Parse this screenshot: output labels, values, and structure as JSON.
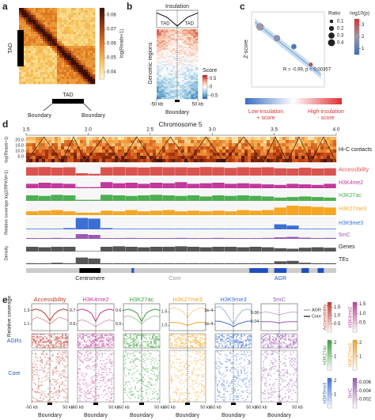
{
  "panel_labels": [
    "a",
    "b",
    "c",
    "d",
    "e"
  ],
  "chart_data": [
    {
      "type": "heatmap",
      "colorbar_title": "log(Reads+1)",
      "clim": [
        0.035,
        0.085
      ],
      "colorbar_ticks": [
        0.04,
        0.05,
        0.06,
        0.07,
        0.08
      ],
      "annotations": [
        "TAD",
        "TAD",
        "Boundary",
        "Boundary"
      ]
    },
    {
      "type": "heatmap",
      "title": "Insulation",
      "ylabel": "Genomic regions",
      "xlabel": "Boundary",
      "xlim": [
        -50,
        50
      ],
      "xticks": [
        {
          "value": -50,
          "label": "-50 kb"
        },
        {
          "value": 50,
          "label": "50 kb"
        }
      ],
      "profile_x": [
        -50,
        -25,
        0,
        25,
        50
      ],
      "profile": [
        0.85,
        0.6,
        0.1,
        0.6,
        0.85
      ],
      "profile_ylim": [
        0,
        1
      ],
      "colorbar_title": "Score",
      "clim": [
        -0.7,
        0.7
      ],
      "colorbar_ticks": [
        -0.5,
        0,
        0.5
      ],
      "annotations": [
        "TAD",
        "TAD"
      ]
    },
    {
      "type": "scatter",
      "ylabel": "Z-score",
      "x": [
        1,
        2,
        3,
        4
      ],
      "values": [
        1.2,
        0.6,
        0.15,
        -0.8
      ],
      "sizes": [
        0.4,
        0.3,
        0.2,
        0.1
      ],
      "pvals": [
        2.0,
        1.8,
        0.8,
        3.2
      ],
      "xlim": [
        0.5,
        4.8
      ],
      "ylim": [
        -2,
        2
      ],
      "annotation": "R = -0.99, p = 0.00357",
      "size_title": "Ratio",
      "size_ticks": [
        0.1,
        0.2,
        0.3,
        0.4
      ],
      "color_title": "-log10(p)",
      "clim": [
        0.5,
        3.5
      ],
      "color_ticks": [
        1,
        2,
        3
      ],
      "left_label": [
        "Low insulation",
        "+ score"
      ],
      "right_label": [
        "High insulation",
        "- score"
      ]
    },
    {
      "type": "tracks",
      "title": "Chromosome 5",
      "xlim": [
        1.5,
        4.0
      ],
      "xticks": [
        1.5,
        {
          "value": 2,
          "label": "2.0"
        },
        2.5,
        {
          "value": 3,
          "label": "3.0"
        },
        3.5,
        {
          "value": 4,
          "label": "4.0"
        }
      ],
      "hic": {
        "name": "Hi-C contacts",
        "ylabel": "log(Reads+1)",
        "ylim": [
          0,
          23
        ],
        "yticks": [
          {
            "value": 5,
            "label": "5.0"
          },
          {
            "value": 10,
            "label": "10.0"
          },
          {
            "value": 15,
            "label": "15.0"
          },
          {
            "value": 20,
            "label": "20.0"
          }
        ]
      },
      "coverage_label": "Relative coverage log2(RPKM+1)",
      "density_label": "Density",
      "ylim": [
        0,
        1
      ],
      "bins": [
        1.5,
        1.6,
        1.7,
        1.8,
        1.9,
        2.0,
        2.1,
        2.2,
        2.3,
        2.4,
        2.5,
        2.6,
        2.7,
        2.8,
        2.9,
        3.0,
        3.1,
        3.2,
        3.3,
        3.4,
        3.5,
        3.6,
        3.7,
        3.8,
        3.9,
        4.0
      ],
      "tracks": [
        {
          "name": "Accessibility",
          "color": "#d9534f",
          "values": [
            0.7,
            0.72,
            0.68,
            0.7,
            0.2,
            0.15,
            0.7,
            0.72,
            0.7,
            0.68,
            0.72,
            0.7,
            0.7,
            0.68,
            0.72,
            0.7,
            0.65,
            0.7,
            0.68,
            0.7,
            0.62,
            0.6,
            0.66,
            0.6,
            0.62
          ]
        },
        {
          "name": "H3K4me2",
          "color": "#c0399b",
          "values": [
            0.4,
            0.5,
            0.45,
            0.4,
            0.1,
            0.1,
            0.55,
            0.45,
            0.5,
            0.4,
            0.5,
            0.45,
            0.55,
            0.4,
            0.45,
            0.5,
            0.4,
            0.45,
            0.4,
            0.35,
            0.3,
            0.4,
            0.35,
            0.3,
            0.4
          ]
        },
        {
          "name": "H3K27ac",
          "color": "#4caf50",
          "values": [
            0.5,
            0.45,
            0.55,
            0.5,
            0.1,
            0.1,
            0.55,
            0.5,
            0.45,
            0.5,
            0.55,
            0.5,
            0.45,
            0.5,
            0.4,
            0.5,
            0.45,
            0.5,
            0.45,
            0.4,
            0.3,
            0.35,
            0.4,
            0.35,
            0.3
          ]
        },
        {
          "name": "H3K27me3",
          "color": "#f5a623",
          "values": [
            0.3,
            0.35,
            0.4,
            0.3,
            0.2,
            0.2,
            0.35,
            0.3,
            0.4,
            0.3,
            0.35,
            0.4,
            0.3,
            0.35,
            0.3,
            0.35,
            0.3,
            0.4,
            0.35,
            0.4,
            0.6,
            0.75,
            0.7,
            0.65,
            0.6
          ]
        },
        {
          "name": "H3K9me3",
          "color": "#3b6fd4",
          "values": [
            0.05,
            0.05,
            0.05,
            0.1,
            0.9,
            0.85,
            0.1,
            0.05,
            0.05,
            0.05,
            0.05,
            0.05,
            0.05,
            0.05,
            0.05,
            0.05,
            0.05,
            0.05,
            0.05,
            0.05,
            0.4,
            0.3,
            0.05,
            0.05,
            0.05
          ]
        },
        {
          "name": "5mC",
          "color": "#9b59b6",
          "values": [
            0.1,
            0.1,
            0.12,
            0.1,
            0.6,
            0.5,
            0.1,
            0.1,
            0.12,
            0.1,
            0.1,
            0.1,
            0.12,
            0.1,
            0.1,
            0.12,
            0.1,
            0.1,
            0.1,
            0.12,
            0.2,
            0.25,
            0.15,
            0.1,
            0.12
          ]
        },
        {
          "name": "Genes",
          "color": "#555555",
          "values": [
            0.5,
            0.45,
            0.5,
            0.5,
            0.05,
            0.05,
            0.5,
            0.55,
            0.5,
            0.45,
            0.5,
            0.5,
            0.55,
            0.5,
            0.45,
            0.5,
            0.5,
            0.45,
            0.5,
            0.45,
            0.35,
            0.3,
            0.4,
            0.45,
            0.4
          ]
        },
        {
          "name": "TEs",
          "color": "#555555",
          "values": [
            0.1,
            0.1,
            0.15,
            0.1,
            0.7,
            0.6,
            0.1,
            0.1,
            0.1,
            0.1,
            0.1,
            0.1,
            0.1,
            0.1,
            0.1,
            0.1,
            0.1,
            0.1,
            0.1,
            0.1,
            0.3,
            0.35,
            0.15,
            0.1,
            0.1
          ]
        }
      ],
      "core": {
        "name": "Core",
        "start": 1.5,
        "end": 4.0,
        "color": "#cccccc"
      },
      "centromere": {
        "name": "Centromere",
        "start": 1.93,
        "end": 2.1,
        "color": "#000000"
      },
      "agr": {
        "name": "AGR",
        "color": "#1f4fbf",
        "segments": [
          [
            2.35,
            2.37
          ],
          [
            3.3,
            3.45
          ],
          [
            3.5,
            3.6
          ],
          [
            3.72,
            3.78
          ],
          [
            3.85,
            3.9
          ]
        ]
      }
    },
    {
      "type": "profiles",
      "ylabel": "Relative coverage",
      "row_labels": [
        "AGRs",
        "Core"
      ],
      "xlabel": "Boundary",
      "xlim": [
        -50,
        50
      ],
      "xticks": [
        {
          "value": -50,
          "label": "-50 kb"
        },
        {
          "value": 50,
          "label": "50 kb"
        }
      ],
      "x": [
        -50,
        -37.5,
        -25,
        -12.5,
        0,
        12.5,
        25,
        37.5,
        50
      ],
      "legend": [
        {
          "name": "AGR",
          "color": "#999999"
        },
        {
          "name": "Core",
          "color": "#111111"
        }
      ],
      "panels": [
        {
          "title": "Accessibility",
          "color": "#c0392b",
          "ylim": [
            1.0,
            1.4
          ],
          "yticks": [
            1.1,
            1.3
          ],
          "agr": [
            1.15,
            1.2,
            1.18,
            1.15,
            1.1,
            1.15,
            1.2,
            1.18,
            1.15
          ],
          "core": [
            1.3,
            1.32,
            1.3,
            1.25,
            1.15,
            1.25,
            1.3,
            1.32,
            1.3
          ],
          "clim": [
            0,
            1.8
          ],
          "colorbar_ticks": [
            0.5,
            {
              "value": 1,
              "label": "1.0"
            },
            1.5
          ]
        },
        {
          "title": "H3K4me2",
          "color": "#c0399b",
          "ylim": [
            0.55,
            0.75
          ],
          "yticks": [
            0.6,
            0.7
          ],
          "agr": [
            0.62,
            0.63,
            0.62,
            0.6,
            0.58,
            0.6,
            0.62,
            0.63,
            0.62
          ],
          "core": [
            0.7,
            0.71,
            0.7,
            0.68,
            0.62,
            0.68,
            0.7,
            0.71,
            0.7
          ],
          "clim": [
            0,
            1.6
          ],
          "colorbar_ticks": [
            0.5,
            {
              "value": 1,
              "label": "1.0"
            },
            1.5
          ]
        },
        {
          "title": "H3K27ac",
          "color": "#3e9e3e",
          "ylim": [
            0.45,
            0.65
          ],
          "yticks": [
            0.5,
            0.6
          ],
          "agr": [
            0.55,
            0.56,
            0.55,
            0.53,
            0.5,
            0.53,
            0.55,
            0.56,
            0.55
          ],
          "core": [
            0.6,
            0.61,
            0.6,
            0.58,
            0.52,
            0.58,
            0.6,
            0.61,
            0.6
          ],
          "clim": [
            0,
            2.2
          ],
          "colorbar_ticks": [
            1,
            2
          ]
        },
        {
          "title": "H3K27me3",
          "color": "#f5a623",
          "ylim": [
            0.8,
            1.8
          ],
          "yticks": [
            {
              "value": 1,
              "label": "1.0"
            },
            1.5
          ],
          "agr": [
            1.6,
            1.65,
            1.6,
            1.5,
            1.3,
            1.5,
            1.6,
            1.65,
            1.6
          ],
          "core": [
            1.1,
            1.1,
            1.1,
            1.05,
            1.0,
            1.05,
            1.1,
            1.1,
            1.1
          ],
          "clim": [
            0,
            2.2
          ],
          "colorbar_ticks": [
            1,
            2
          ]
        },
        {
          "title": "H3K9me3",
          "color": "#3b6fd4",
          "ylim": [
            0.00015,
            0.00035
          ],
          "yticks": [
            {
              "value": 0.0002,
              "label": "2e-4"
            },
            {
              "value": 0.0003,
              "label": "3e-4"
            }
          ],
          "agr": [
            0.00032,
            0.00033,
            0.0003,
            0.00025,
            0.0002,
            0.00026,
            0.0003,
            0.00031,
            0.0003
          ],
          "core": [
            0.00022,
            0.00022,
            0.00021,
            0.0002,
            0.00018,
            0.0002,
            0.00021,
            0.00022,
            0.00022
          ],
          "clim": [
            0,
            2.2
          ],
          "colorbar_ticks": [
            1,
            2
          ]
        },
        {
          "title": "5mC",
          "color": "#9b59b6",
          "ylim": [
            0.02,
            0.08
          ],
          "yticks": [
            0.04,
            0.06
          ],
          "agr": [
            0.06,
            0.062,
            0.06,
            0.058,
            0.055,
            0.058,
            0.06,
            0.062,
            0.06
          ],
          "core": [
            0.04,
            0.04,
            0.04,
            0.039,
            0.037,
            0.039,
            0.04,
            0.04,
            0.04
          ],
          "clim": [
            0,
            0.007
          ],
          "colorbar_ticks": [
            0.002,
            0.004,
            0.006
          ]
        }
      ]
    }
  ]
}
